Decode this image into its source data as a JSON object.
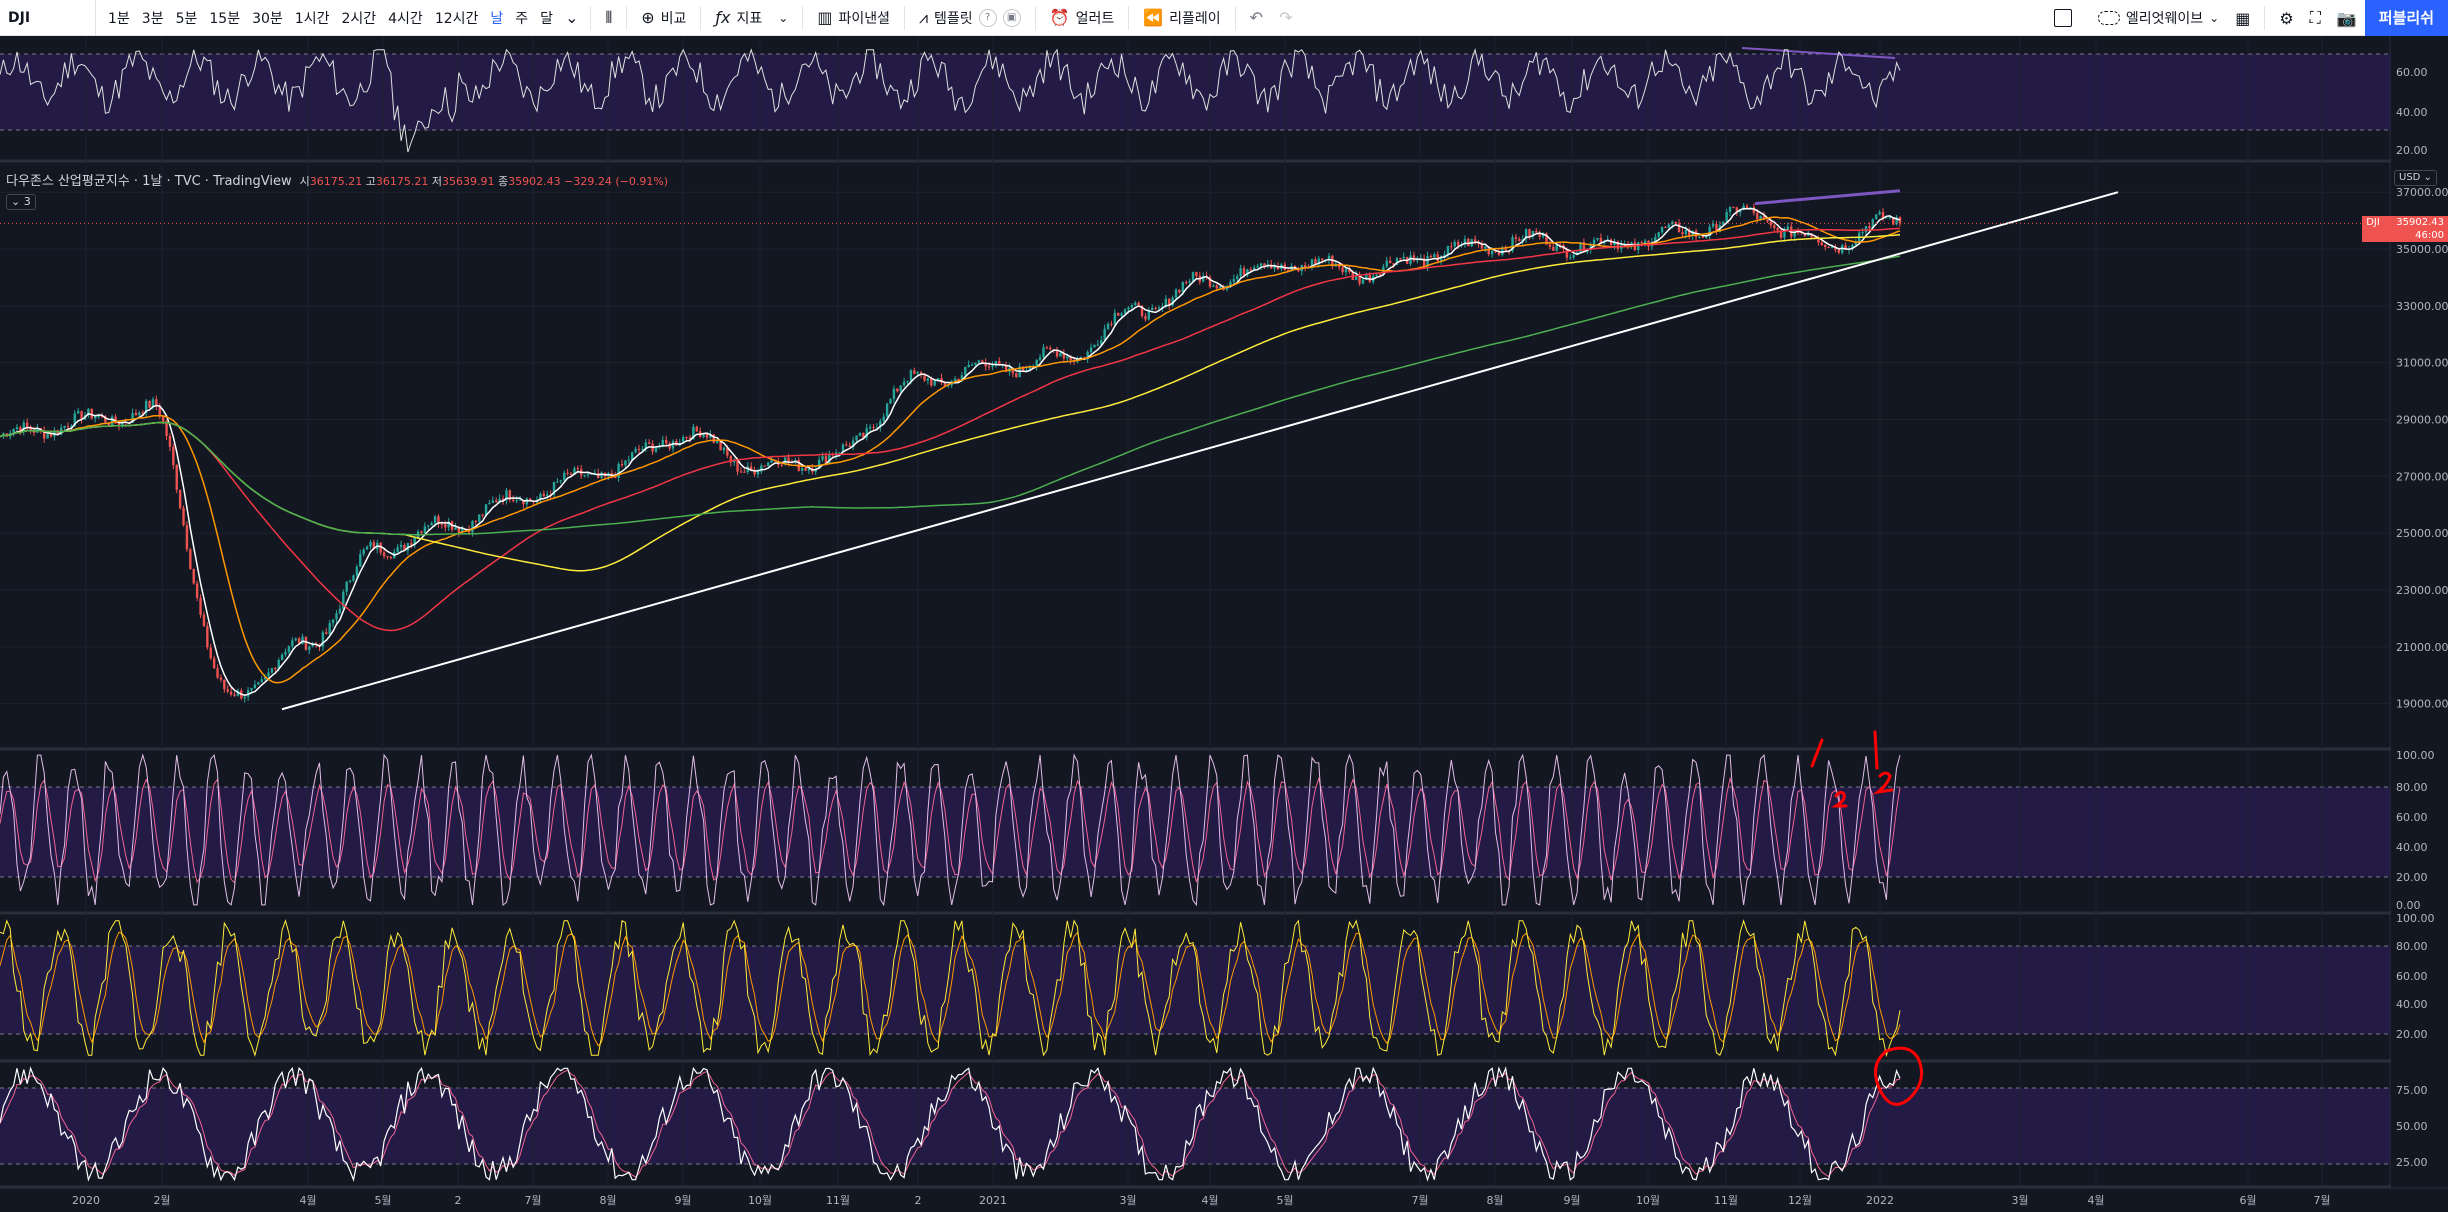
{
  "toolbar": {
    "symbol": "DJI",
    "intervals": [
      "1분",
      "3분",
      "5분",
      "15분",
      "30분",
      "1시간",
      "2시간",
      "4시간",
      "12시간",
      "날",
      "주",
      "달"
    ],
    "active_interval": "날",
    "compare_label": "비교",
    "indicators_label": "지표",
    "pine_label": "파이낸셜",
    "templates_label": "템플릿",
    "alert_label": "얼러트",
    "replay_label": "리플레이",
    "layout_name": "엘리엇웨이브",
    "publish_label": "퍼블리쉬"
  },
  "legend": {
    "title": "다우존스 산업평균지수 · 1날 · TVC · TradingView",
    "o_label": "시",
    "o": "36175.21",
    "h_label": "고",
    "h": "36175.21",
    "l_label": "저",
    "l": "35639.91",
    "c_label": "종",
    "c": "35902.43",
    "change": "−329.24 (−0.91%)",
    "collapsed_count": "3"
  },
  "price_label": {
    "symbol": "DJI",
    "price": "35902.43",
    "countdown": "46:00",
    "currency": "USD"
  },
  "colors": {
    "background": "#131722",
    "up": "#26a69a",
    "down": "#ef5350",
    "rsi_band": "#2a1e52",
    "ma_orange": "#ff9800",
    "ma_red": "#f23645",
    "ma_yellow": "#ffeb3b",
    "ma_green": "#4caf50",
    "trendline": "#ffffff",
    "divergence": "#7e57c2",
    "stoch_k": "#e1bee7",
    "stoch_d": "#f06292",
    "annotation": "#ff0000"
  },
  "price_axis": {
    "ticks": [
      "37000.00",
      "35000.00",
      "33000.00",
      "31000.00",
      "29000.00",
      "27000.00",
      "25000.00",
      "23000.00",
      "21000.00",
      "19000.00"
    ]
  },
  "rsi_axis": {
    "ticks": [
      "60.00",
      "40.00",
      "20.00"
    ]
  },
  "stoch1_axis": {
    "ticks": [
      "100.00",
      "80.00",
      "60.00",
      "40.00",
      "20.00",
      "0.00"
    ]
  },
  "stoch2_axis": {
    "ticks": [
      "100.00",
      "80.00",
      "60.00",
      "40.00",
      "20.00"
    ]
  },
  "stoch3_axis": {
    "ticks": [
      "75.00",
      "50.00",
      "25.00"
    ]
  },
  "time_axis": {
    "labels": [
      "2020",
      "2월",
      "4월",
      "5월",
      "2",
      "7월",
      "8월",
      "9월",
      "10월",
      "11월",
      "2",
      "2021",
      "3월",
      "4월",
      "5월",
      "7월",
      "8월",
      "9월",
      "10월",
      "11월",
      "12월",
      "2022",
      "3월",
      "4월",
      "6월",
      "7월"
    ]
  },
  "annotations": {
    "wave1a": "1",
    "wave2a": "2",
    "wave1b": "1",
    "wave2b": "2"
  },
  "chart_data": {
    "type": "line",
    "symbol": "DJI",
    "x": [
      "2019-12",
      "2020-01",
      "2020-02",
      "2020-03",
      "2020-04",
      "2020-05",
      "2020-06",
      "2020-07",
      "2020-08",
      "2020-09",
      "2020-10",
      "2020-11",
      "2020-12",
      "2021-01",
      "2021-02",
      "2021-03",
      "2021-04",
      "2021-05",
      "2021-06",
      "2021-07",
      "2021-08",
      "2021-09",
      "2021-10",
      "2021-11",
      "2021-12",
      "2022-01"
    ],
    "series": [
      {
        "values": [
          28400,
          28900,
          29300,
          19200,
          21000,
          24500,
          25400,
          26400,
          27200,
          28500,
          27300,
          27700,
          30300,
          30800,
          31200,
          32900,
          34000,
          34500,
          34200,
          34900,
          35300,
          35100,
          35500,
          36200,
          35200,
          36000
        ]
      }
    ],
    "ylim": [
      18000,
      37500
    ],
    "last": 35902.43
  }
}
